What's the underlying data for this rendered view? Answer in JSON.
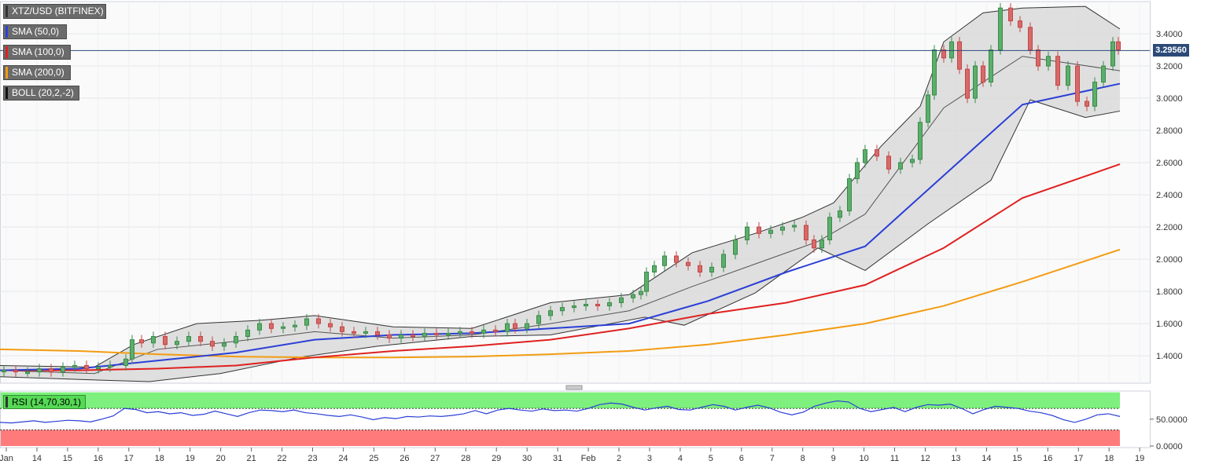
{
  "chart_data": [
    {
      "type": "candlestick",
      "title": "XTZ/USD (BITFINEX)",
      "x_tick_labels": [
        "Jan",
        "14",
        "15",
        "16",
        "17",
        "18",
        "19",
        "20",
        "21",
        "22",
        "23",
        "24",
        "25",
        "26",
        "27",
        "28",
        "29",
        "30",
        "31",
        "Feb",
        "2",
        "3",
        "4",
        "5",
        "6",
        "7",
        "8",
        "9",
        "10",
        "11",
        "12",
        "13",
        "14",
        "15",
        "16",
        "17",
        "18",
        "19"
      ],
      "y_tick_labels": [
        "1.4000",
        "1.6000",
        "1.8000",
        "2.0000",
        "2.2000",
        "2.4000",
        "2.6000",
        "2.8000",
        "3.0000",
        "3.2000",
        "3.4000"
      ],
      "ylim": [
        1.23,
        3.6
      ],
      "last_price": 3.2956,
      "last_price_label": "3.29560",
      "grid": true,
      "indicators": [
        {
          "name": "SMA (50,0)",
          "color": "#2b3fd6"
        },
        {
          "name": "SMA (100,0)",
          "color": "#e02020"
        },
        {
          "name": "SMA (200,0)",
          "color": "#f39c12"
        },
        {
          "name": "BOLL (20,2,-2)",
          "color": "#333333"
        }
      ],
      "sma200": [
        [
          0,
          1.44
        ],
        [
          100,
          1.43
        ],
        [
          200,
          1.41
        ],
        [
          300,
          1.395
        ],
        [
          400,
          1.39
        ],
        [
          500,
          1.39
        ],
        [
          600,
          1.395
        ],
        [
          700,
          1.41
        ],
        [
          800,
          1.43
        ],
        [
          900,
          1.47
        ],
        [
          1000,
          1.53
        ],
        [
          1100,
          1.6
        ],
        [
          1200,
          1.71
        ],
        [
          1300,
          1.86
        ],
        [
          1424,
          2.06
        ]
      ],
      "sma100": [
        [
          0,
          1.31
        ],
        [
          100,
          1.31
        ],
        [
          200,
          1.32
        ],
        [
          300,
          1.34
        ],
        [
          400,
          1.39
        ],
        [
          500,
          1.43
        ],
        [
          600,
          1.46
        ],
        [
          700,
          1.5
        ],
        [
          800,
          1.57
        ],
        [
          900,
          1.66
        ],
        [
          1000,
          1.73
        ],
        [
          1100,
          1.84
        ],
        [
          1200,
          2.07
        ],
        [
          1300,
          2.38
        ],
        [
          1424,
          2.59
        ]
      ],
      "sma50": [
        [
          0,
          1.31
        ],
        [
          100,
          1.32
        ],
        [
          200,
          1.37
        ],
        [
          300,
          1.42
        ],
        [
          400,
          1.5
        ],
        [
          500,
          1.53
        ],
        [
          600,
          1.54
        ],
        [
          700,
          1.57
        ],
        [
          800,
          1.6
        ],
        [
          900,
          1.74
        ],
        [
          1000,
          1.92
        ],
        [
          1100,
          2.08
        ],
        [
          1200,
          2.52
        ],
        [
          1300,
          2.96
        ],
        [
          1424,
          3.09
        ]
      ],
      "boll_upper": [
        [
          0,
          1.34
        ],
        [
          120,
          1.33
        ],
        [
          170,
          1.47
        ],
        [
          250,
          1.6
        ],
        [
          330,
          1.62
        ],
        [
          400,
          1.65
        ],
        [
          500,
          1.58
        ],
        [
          600,
          1.57
        ],
        [
          700,
          1.73
        ],
        [
          800,
          1.78
        ],
        [
          880,
          2.04
        ],
        [
          960,
          2.16
        ],
        [
          1020,
          2.26
        ],
        [
          1060,
          2.35
        ],
        [
          1120,
          2.7
        ],
        [
          1170,
          2.95
        ],
        [
          1200,
          3.35
        ],
        [
          1250,
          3.53
        ],
        [
          1300,
          3.56
        ],
        [
          1380,
          3.57
        ],
        [
          1424,
          3.43
        ]
      ],
      "boll_mid": [
        [
          0,
          1.31
        ],
        [
          120,
          1.29
        ],
        [
          200,
          1.44
        ],
        [
          300,
          1.49
        ],
        [
          400,
          1.55
        ],
        [
          500,
          1.51
        ],
        [
          600,
          1.53
        ],
        [
          700,
          1.6
        ],
        [
          800,
          1.68
        ],
        [
          880,
          1.83
        ],
        [
          960,
          1.97
        ],
        [
          1040,
          2.11
        ],
        [
          1100,
          2.28
        ],
        [
          1200,
          2.94
        ],
        [
          1300,
          3.26
        ],
        [
          1424,
          3.17
        ]
      ],
      "boll_lower": [
        [
          0,
          1.27
        ],
        [
          120,
          1.25
        ],
        [
          190,
          1.24
        ],
        [
          280,
          1.29
        ],
        [
          380,
          1.39
        ],
        [
          480,
          1.46
        ],
        [
          600,
          1.52
        ],
        [
          700,
          1.53
        ],
        [
          820,
          1.64
        ],
        [
          870,
          1.59
        ],
        [
          960,
          1.79
        ],
        [
          1040,
          2.07
        ],
        [
          1100,
          1.93
        ],
        [
          1180,
          2.22
        ],
        [
          1260,
          2.49
        ],
        [
          1310,
          2.99
        ],
        [
          1380,
          2.88
        ],
        [
          1424,
          2.92
        ]
      ],
      "candles_path_hint": "rising trend from ~1.30 to ~3.30 with peak near 3.57",
      "candles": [
        [
          5,
          1.3,
          1.31
        ],
        [
          20,
          1.31,
          1.3
        ],
        [
          35,
          1.3,
          1.3
        ],
        [
          50,
          1.3,
          1.32
        ],
        [
          65,
          1.32,
          1.3
        ],
        [
          80,
          1.3,
          1.33
        ],
        [
          95,
          1.33,
          1.34
        ],
        [
          110,
          1.34,
          1.32
        ],
        [
          125,
          1.32,
          1.33
        ],
        [
          140,
          1.33,
          1.34
        ],
        [
          160,
          1.34,
          1.38
        ],
        [
          168,
          1.38,
          1.5
        ],
        [
          180,
          1.5,
          1.48
        ],
        [
          195,
          1.48,
          1.52
        ],
        [
          210,
          1.52,
          1.47
        ],
        [
          225,
          1.47,
          1.49
        ],
        [
          240,
          1.49,
          1.52
        ],
        [
          255,
          1.52,
          1.49
        ],
        [
          270,
          1.49,
          1.46
        ],
        [
          285,
          1.46,
          1.48
        ],
        [
          300,
          1.48,
          1.52
        ],
        [
          315,
          1.52,
          1.56
        ],
        [
          330,
          1.56,
          1.6
        ],
        [
          345,
          1.6,
          1.57
        ],
        [
          360,
          1.57,
          1.58
        ],
        [
          375,
          1.58,
          1.59
        ],
        [
          390,
          1.59,
          1.63
        ],
        [
          405,
          1.63,
          1.6
        ],
        [
          420,
          1.6,
          1.58
        ],
        [
          435,
          1.58,
          1.55
        ],
        [
          450,
          1.55,
          1.54
        ],
        [
          465,
          1.54,
          1.55
        ],
        [
          480,
          1.55,
          1.53
        ],
        [
          495,
          1.53,
          1.51
        ],
        [
          510,
          1.51,
          1.53
        ],
        [
          525,
          1.53,
          1.52
        ],
        [
          540,
          1.52,
          1.54
        ],
        [
          555,
          1.54,
          1.53
        ],
        [
          570,
          1.53,
          1.54
        ],
        [
          585,
          1.54,
          1.55
        ],
        [
          600,
          1.55,
          1.54
        ],
        [
          615,
          1.54,
          1.56
        ],
        [
          630,
          1.56,
          1.55
        ],
        [
          645,
          1.55,
          1.6
        ],
        [
          655,
          1.6,
          1.57
        ],
        [
          670,
          1.57,
          1.6
        ],
        [
          685,
          1.6,
          1.65
        ],
        [
          700,
          1.65,
          1.68
        ],
        [
          715,
          1.68,
          1.7
        ],
        [
          730,
          1.7,
          1.71
        ],
        [
          745,
          1.71,
          1.72
        ],
        [
          760,
          1.72,
          1.71
        ],
        [
          775,
          1.71,
          1.73
        ],
        [
          790,
          1.73,
          1.76
        ],
        [
          805,
          1.76,
          1.78
        ],
        [
          815,
          1.78,
          1.8
        ],
        [
          822,
          1.8,
          1.92
        ],
        [
          832,
          1.92,
          1.96
        ],
        [
          845,
          1.96,
          2.02
        ],
        [
          860,
          2.02,
          1.98
        ],
        [
          875,
          1.98,
          1.96
        ],
        [
          890,
          1.96,
          1.92
        ],
        [
          905,
          1.92,
          1.95
        ],
        [
          920,
          1.95,
          2.03
        ],
        [
          935,
          2.03,
          2.12
        ],
        [
          950,
          2.12,
          2.2
        ],
        [
          965,
          2.2,
          2.16
        ],
        [
          980,
          2.16,
          2.18
        ],
        [
          995,
          2.18,
          2.2
        ],
        [
          1010,
          2.2,
          2.21
        ],
        [
          1025,
          2.21,
          2.12
        ],
        [
          1035,
          2.12,
          2.07
        ],
        [
          1045,
          2.07,
          2.12
        ],
        [
          1055,
          2.12,
          2.26
        ],
        [
          1068,
          2.26,
          2.3
        ],
        [
          1080,
          2.3,
          2.5
        ],
        [
          1090,
          2.5,
          2.6
        ],
        [
          1100,
          2.6,
          2.68
        ],
        [
          1115,
          2.68,
          2.64
        ],
        [
          1130,
          2.64,
          2.56
        ],
        [
          1145,
          2.56,
          2.6
        ],
        [
          1160,
          2.6,
          2.62
        ],
        [
          1170,
          2.62,
          2.85
        ],
        [
          1180,
          2.85,
          3.02
        ],
        [
          1188,
          3.02,
          3.3
        ],
        [
          1200,
          3.3,
          3.25
        ],
        [
          1210,
          3.25,
          3.35
        ],
        [
          1220,
          3.35,
          3.18
        ],
        [
          1230,
          3.18,
          3.0
        ],
        [
          1240,
          3.0,
          3.2
        ],
        [
          1250,
          3.2,
          3.1
        ],
        [
          1260,
          3.1,
          3.3
        ],
        [
          1272,
          3.3,
          3.56
        ],
        [
          1285,
          3.56,
          3.48
        ],
        [
          1297,
          3.48,
          3.44
        ],
        [
          1310,
          3.44,
          3.3
        ],
        [
          1320,
          3.3,
          3.2
        ],
        [
          1333,
          3.2,
          3.26
        ],
        [
          1345,
          3.26,
          3.08
        ],
        [
          1358,
          3.08,
          3.2
        ],
        [
          1370,
          3.2,
          2.98
        ],
        [
          1382,
          2.98,
          2.95
        ],
        [
          1392,
          2.95,
          3.1
        ],
        [
          1403,
          3.1,
          3.2
        ],
        [
          1415,
          3.2,
          3.35
        ],
        [
          1422,
          3.35,
          3.3
        ]
      ]
    },
    {
      "type": "line",
      "title": "RSI (14,70,30,1)",
      "ylim": [
        0,
        100
      ],
      "y_tick_labels": [
        "50.0000",
        "0.0000"
      ],
      "overbought": 70,
      "oversold": 30,
      "values": [
        44,
        43,
        45,
        47,
        44,
        46,
        48,
        47,
        45,
        50,
        56,
        70,
        68,
        62,
        64,
        60,
        62,
        57,
        59,
        65,
        60,
        55,
        62,
        67,
        66,
        64,
        67,
        62,
        60,
        57,
        55,
        58,
        54,
        49,
        53,
        51,
        55,
        54,
        56,
        55,
        57,
        60,
        66,
        60,
        67,
        70,
        67,
        65,
        69,
        66,
        67,
        65,
        70,
        77,
        80,
        78,
        72,
        67,
        71,
        74,
        68,
        67,
        72,
        77,
        74,
        67,
        72,
        76,
        71,
        63,
        58,
        63,
        74,
        80,
        84,
        82,
        70,
        64,
        68,
        72,
        64,
        72,
        77,
        76,
        78,
        70,
        60,
        68,
        74,
        72,
        70,
        65,
        62,
        57,
        49,
        44,
        50,
        58,
        60,
        55
      ]
    }
  ],
  "price_label": "3.29560"
}
